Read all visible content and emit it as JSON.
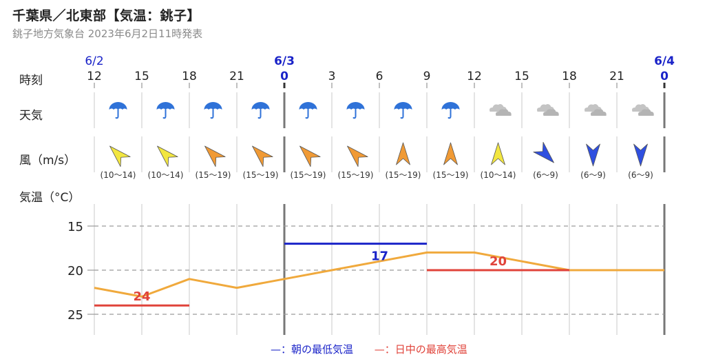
{
  "header": {
    "title": "千葉県／北東部【気温：銚子】",
    "subtitle": "銚子地方気象台 2023年6月2日11時発表"
  },
  "rows": {
    "time": "時刻",
    "weather": "天気",
    "wind": "風（m/s）",
    "temp": "気温（°C）"
  },
  "dates": [
    "6/2",
    "6/3",
    "6/4"
  ],
  "hours": [
    "12",
    "15",
    "18",
    "21",
    "0",
    "3",
    "6",
    "9",
    "12",
    "15",
    "18",
    "21",
    "0"
  ],
  "weather_icons": [
    "umbrella-icon",
    "umbrella-icon",
    "umbrella-icon",
    "umbrella-icon",
    "umbrella-icon",
    "umbrella-icon",
    "umbrella-icon",
    "umbrella-icon",
    "cloud-icon",
    "cloud-icon",
    "cloud-icon",
    "cloud-icon"
  ],
  "wind": [
    {
      "range": "(10〜14)",
      "dir": "SW",
      "color": "#f2e640"
    },
    {
      "range": "(10〜14)",
      "dir": "SW",
      "color": "#f2e640"
    },
    {
      "range": "(15〜19)",
      "dir": "SW",
      "color": "#f09a35"
    },
    {
      "range": "(15〜19)",
      "dir": "SW",
      "color": "#f09a35"
    },
    {
      "range": "(15〜19)",
      "dir": "SW",
      "color": "#f09a35"
    },
    {
      "range": "(15〜19)",
      "dir": "SW",
      "color": "#f09a35"
    },
    {
      "range": "(15〜19)",
      "dir": "S",
      "color": "#f09a35"
    },
    {
      "range": "(15〜19)",
      "dir": "S",
      "color": "#f09a35"
    },
    {
      "range": "(10〜14)",
      "dir": "S",
      "color": "#f2e640"
    },
    {
      "range": "(6〜9)",
      "dir": "NE",
      "color": "#2f4fe0"
    },
    {
      "range": "(6〜9)",
      "dir": "N",
      "color": "#2f4fe0"
    },
    {
      "range": "(6〜9)",
      "dir": "N",
      "color": "#2f4fe0"
    }
  ],
  "colors": {
    "date_text": "#1a23c8",
    "line": "#f0a93c",
    "max": "#e0433a",
    "min": "#1a23c8",
    "umbrella": "#2f72d8",
    "cloud": "#c4c4c4"
  },
  "chart_data": {
    "type": "line",
    "ylabel": "気温（°C）",
    "ylim": [
      13,
      28
    ],
    "yticks": [
      15,
      20,
      25
    ],
    "series": [
      {
        "x": [
          "6/2 12",
          "6/2 15",
          "6/2 18",
          "6/2 21",
          "6/3 0",
          "6/3 3",
          "6/3 6",
          "6/3 9",
          "6/3 12",
          "6/3 15",
          "6/3 18",
          "6/3 21",
          "6/4 0"
        ],
        "values": [
          22,
          23,
          21,
          22,
          21,
          20,
          19,
          18,
          18,
          19,
          20,
          20,
          20
        ]
      }
    ],
    "max_temps": [
      {
        "value": 24,
        "label": "24",
        "start": "6/2 12",
        "end": "6/2 18"
      },
      {
        "value": 20,
        "label": "20",
        "start": "6/3 9",
        "end": "6/3 18"
      }
    ],
    "min_temps": [
      {
        "value": 17,
        "label": "17",
        "start": "6/3 0",
        "end": "6/3 9"
      }
    ]
  },
  "legend": {
    "min_marker": "—",
    "min_label": "：朝の最低気温",
    "max_marker": "—",
    "max_label": "：日中の最高気温"
  }
}
